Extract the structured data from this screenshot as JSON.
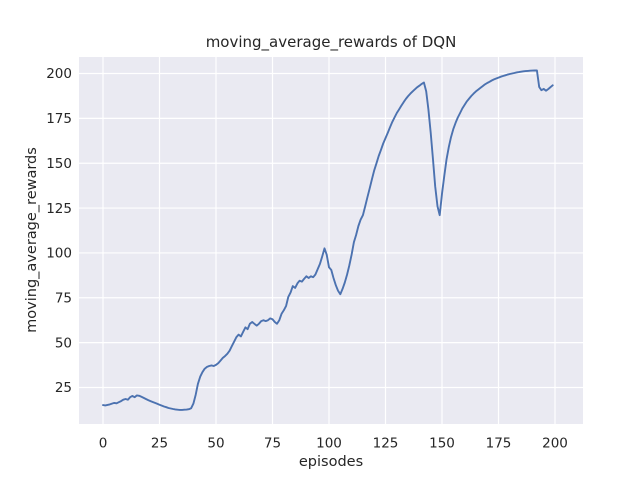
{
  "figure": {
    "title": "moving_average_rewards of DQN",
    "xlabel": "episodes",
    "ylabel": "moving_average_rewards"
  },
  "colors": {
    "figure_bg": "#ffffff",
    "axes_bg": "#eaeaf2",
    "grid": "#ffffff",
    "line": "#4c72b0",
    "text": "#262626"
  },
  "chart_data": {
    "type": "line",
    "title": "moving_average_rewards of DQN",
    "xlabel": "episodes",
    "ylabel": "moving_average_rewards",
    "x_ticks": [
      0,
      25,
      50,
      75,
      100,
      125,
      150,
      175,
      200
    ],
    "y_ticks": [
      25,
      50,
      75,
      100,
      125,
      150,
      175,
      200
    ],
    "xlim": [
      -11,
      212
    ],
    "ylim": [
      3,
      211
    ],
    "grid": true,
    "legend": "none",
    "style": "seaborn-darkgrid",
    "series": [
      {
        "name": "moving_average_rewards",
        "color": "#4c72b0",
        "x": [
          0,
          1,
          2,
          3,
          4,
          5,
          6,
          7,
          8,
          9,
          10,
          11,
          12,
          13,
          14,
          15,
          16,
          17,
          18,
          19,
          20,
          21,
          22,
          23,
          24,
          25,
          26,
          27,
          28,
          29,
          30,
          31,
          32,
          33,
          34,
          35,
          36,
          37,
          38,
          39,
          40,
          41,
          42,
          43,
          44,
          45,
          46,
          47,
          48,
          49,
          50,
          51,
          52,
          53,
          54,
          55,
          56,
          57,
          58,
          59,
          60,
          61,
          62,
          63,
          64,
          65,
          66,
          67,
          68,
          69,
          70,
          71,
          72,
          73,
          74,
          75,
          76,
          77,
          78,
          79,
          80,
          81,
          82,
          83,
          84,
          85,
          86,
          87,
          88,
          89,
          90,
          91,
          92,
          93,
          94,
          95,
          96,
          97,
          98,
          99,
          100,
          101,
          102,
          103,
          104,
          105,
          106,
          107,
          108,
          109,
          110,
          111,
          112,
          113,
          114,
          115,
          116,
          117,
          118,
          119,
          120,
          121,
          122,
          123,
          124,
          125,
          126,
          127,
          128,
          129,
          130,
          131,
          132,
          133,
          134,
          135,
          136,
          137,
          138,
          139,
          140,
          141,
          142,
          143,
          144,
          145,
          146,
          147,
          148,
          149,
          150,
          151,
          152,
          153,
          154,
          155,
          156,
          157,
          158,
          159,
          160,
          161,
          162,
          163,
          164,
          165,
          166,
          167,
          168,
          169,
          170,
          171,
          172,
          173,
          174,
          175,
          176,
          177,
          178,
          179,
          180,
          181,
          182,
          183,
          184,
          185,
          186,
          187,
          188,
          189,
          190,
          191,
          192,
          193,
          194,
          195,
          196,
          197,
          198,
          199
        ],
        "y": [
          15.2,
          15.0,
          15.3,
          15.6,
          16.0,
          16.4,
          16.2,
          16.8,
          17.4,
          18.2,
          18.6,
          18.2,
          19.6,
          20.3,
          19.6,
          20.6,
          20.4,
          19.8,
          19.2,
          18.6,
          18.0,
          17.4,
          16.9,
          16.4,
          15.9,
          15.4,
          14.9,
          14.4,
          14.0,
          13.6,
          13.3,
          13.0,
          12.8,
          12.6,
          12.5,
          12.5,
          12.6,
          12.7,
          12.9,
          13.4,
          16.0,
          21.0,
          27.0,
          31.0,
          33.5,
          35.5,
          36.5,
          37.0,
          37.3,
          37.0,
          37.6,
          38.6,
          40.0,
          41.5,
          42.5,
          43.8,
          45.5,
          48.0,
          50.5,
          53.0,
          54.5,
          53.5,
          56.0,
          58.5,
          57.5,
          60.5,
          61.5,
          60.5,
          59.5,
          60.5,
          62.0,
          62.5,
          62.0,
          62.5,
          63.5,
          63.0,
          61.5,
          60.5,
          62.5,
          66.0,
          68.0,
          70.5,
          75.5,
          78.0,
          81.5,
          80.5,
          83.0,
          84.5,
          84.0,
          85.5,
          87.0,
          86.0,
          87.0,
          86.5,
          88.0,
          91.0,
          94.0,
          98.0,
          102.5,
          99.0,
          92.0,
          90.5,
          86.0,
          82.0,
          79.0,
          77.0,
          80.0,
          83.5,
          88.0,
          93.0,
          99.0,
          106.0,
          110.0,
          115.0,
          118.5,
          121.0,
          126.0,
          131.0,
          136.0,
          141.0,
          146.0,
          150.0,
          154.0,
          157.5,
          161.0,
          164.0,
          167.0,
          170.0,
          173.0,
          175.5,
          178.0,
          180.0,
          182.0,
          184.0,
          185.8,
          187.4,
          188.8,
          190.0,
          191.2,
          192.3,
          193.2,
          194.2,
          195.0,
          190.0,
          180.0,
          167.0,
          152.0,
          137.0,
          126.0,
          121.0,
          133.0,
          143.0,
          152.0,
          159.0,
          164.5,
          169.0,
          172.5,
          175.5,
          178.0,
          180.5,
          182.5,
          184.5,
          186.0,
          187.5,
          188.8,
          190.0,
          191.0,
          192.0,
          193.0,
          193.9,
          194.7,
          195.4,
          196.1,
          196.7,
          197.2,
          197.7,
          198.2,
          198.6,
          199.0,
          199.4,
          199.7,
          200.0,
          200.3,
          200.6,
          200.8,
          201.0,
          201.2,
          201.35,
          201.45,
          201.55,
          201.6,
          201.65,
          201.7,
          192.5,
          190.7,
          191.4,
          190.4,
          191.3,
          192.4,
          193.4
        ]
      }
    ]
  }
}
